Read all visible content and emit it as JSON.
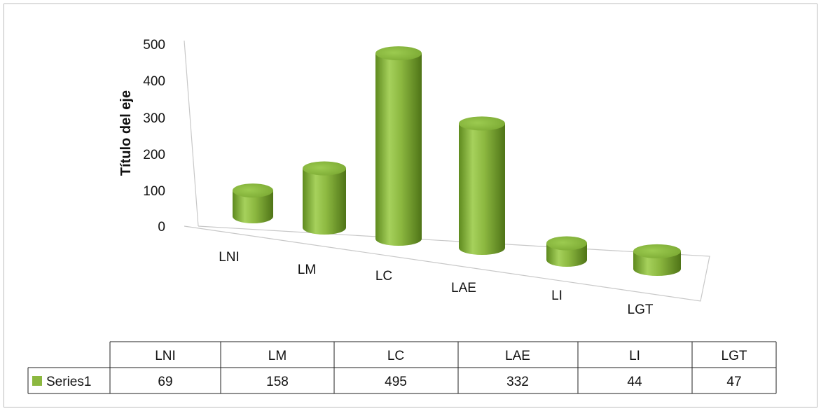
{
  "chart_data": {
    "type": "bar",
    "style": "3d-cylinder",
    "categories": [
      "LNI",
      "LM",
      "LC",
      "LAE",
      "LI",
      "LGT"
    ],
    "series": [
      {
        "name": "Series1",
        "values": [
          69,
          158,
          495,
          332,
          44,
          47
        ],
        "color": "#8cb840"
      }
    ],
    "ylabel": "Título del eje",
    "ylim": [
      0,
      500
    ],
    "yticks": [
      0,
      100,
      200,
      300,
      400,
      500
    ],
    "gridlines": false,
    "legend": "data-table"
  }
}
